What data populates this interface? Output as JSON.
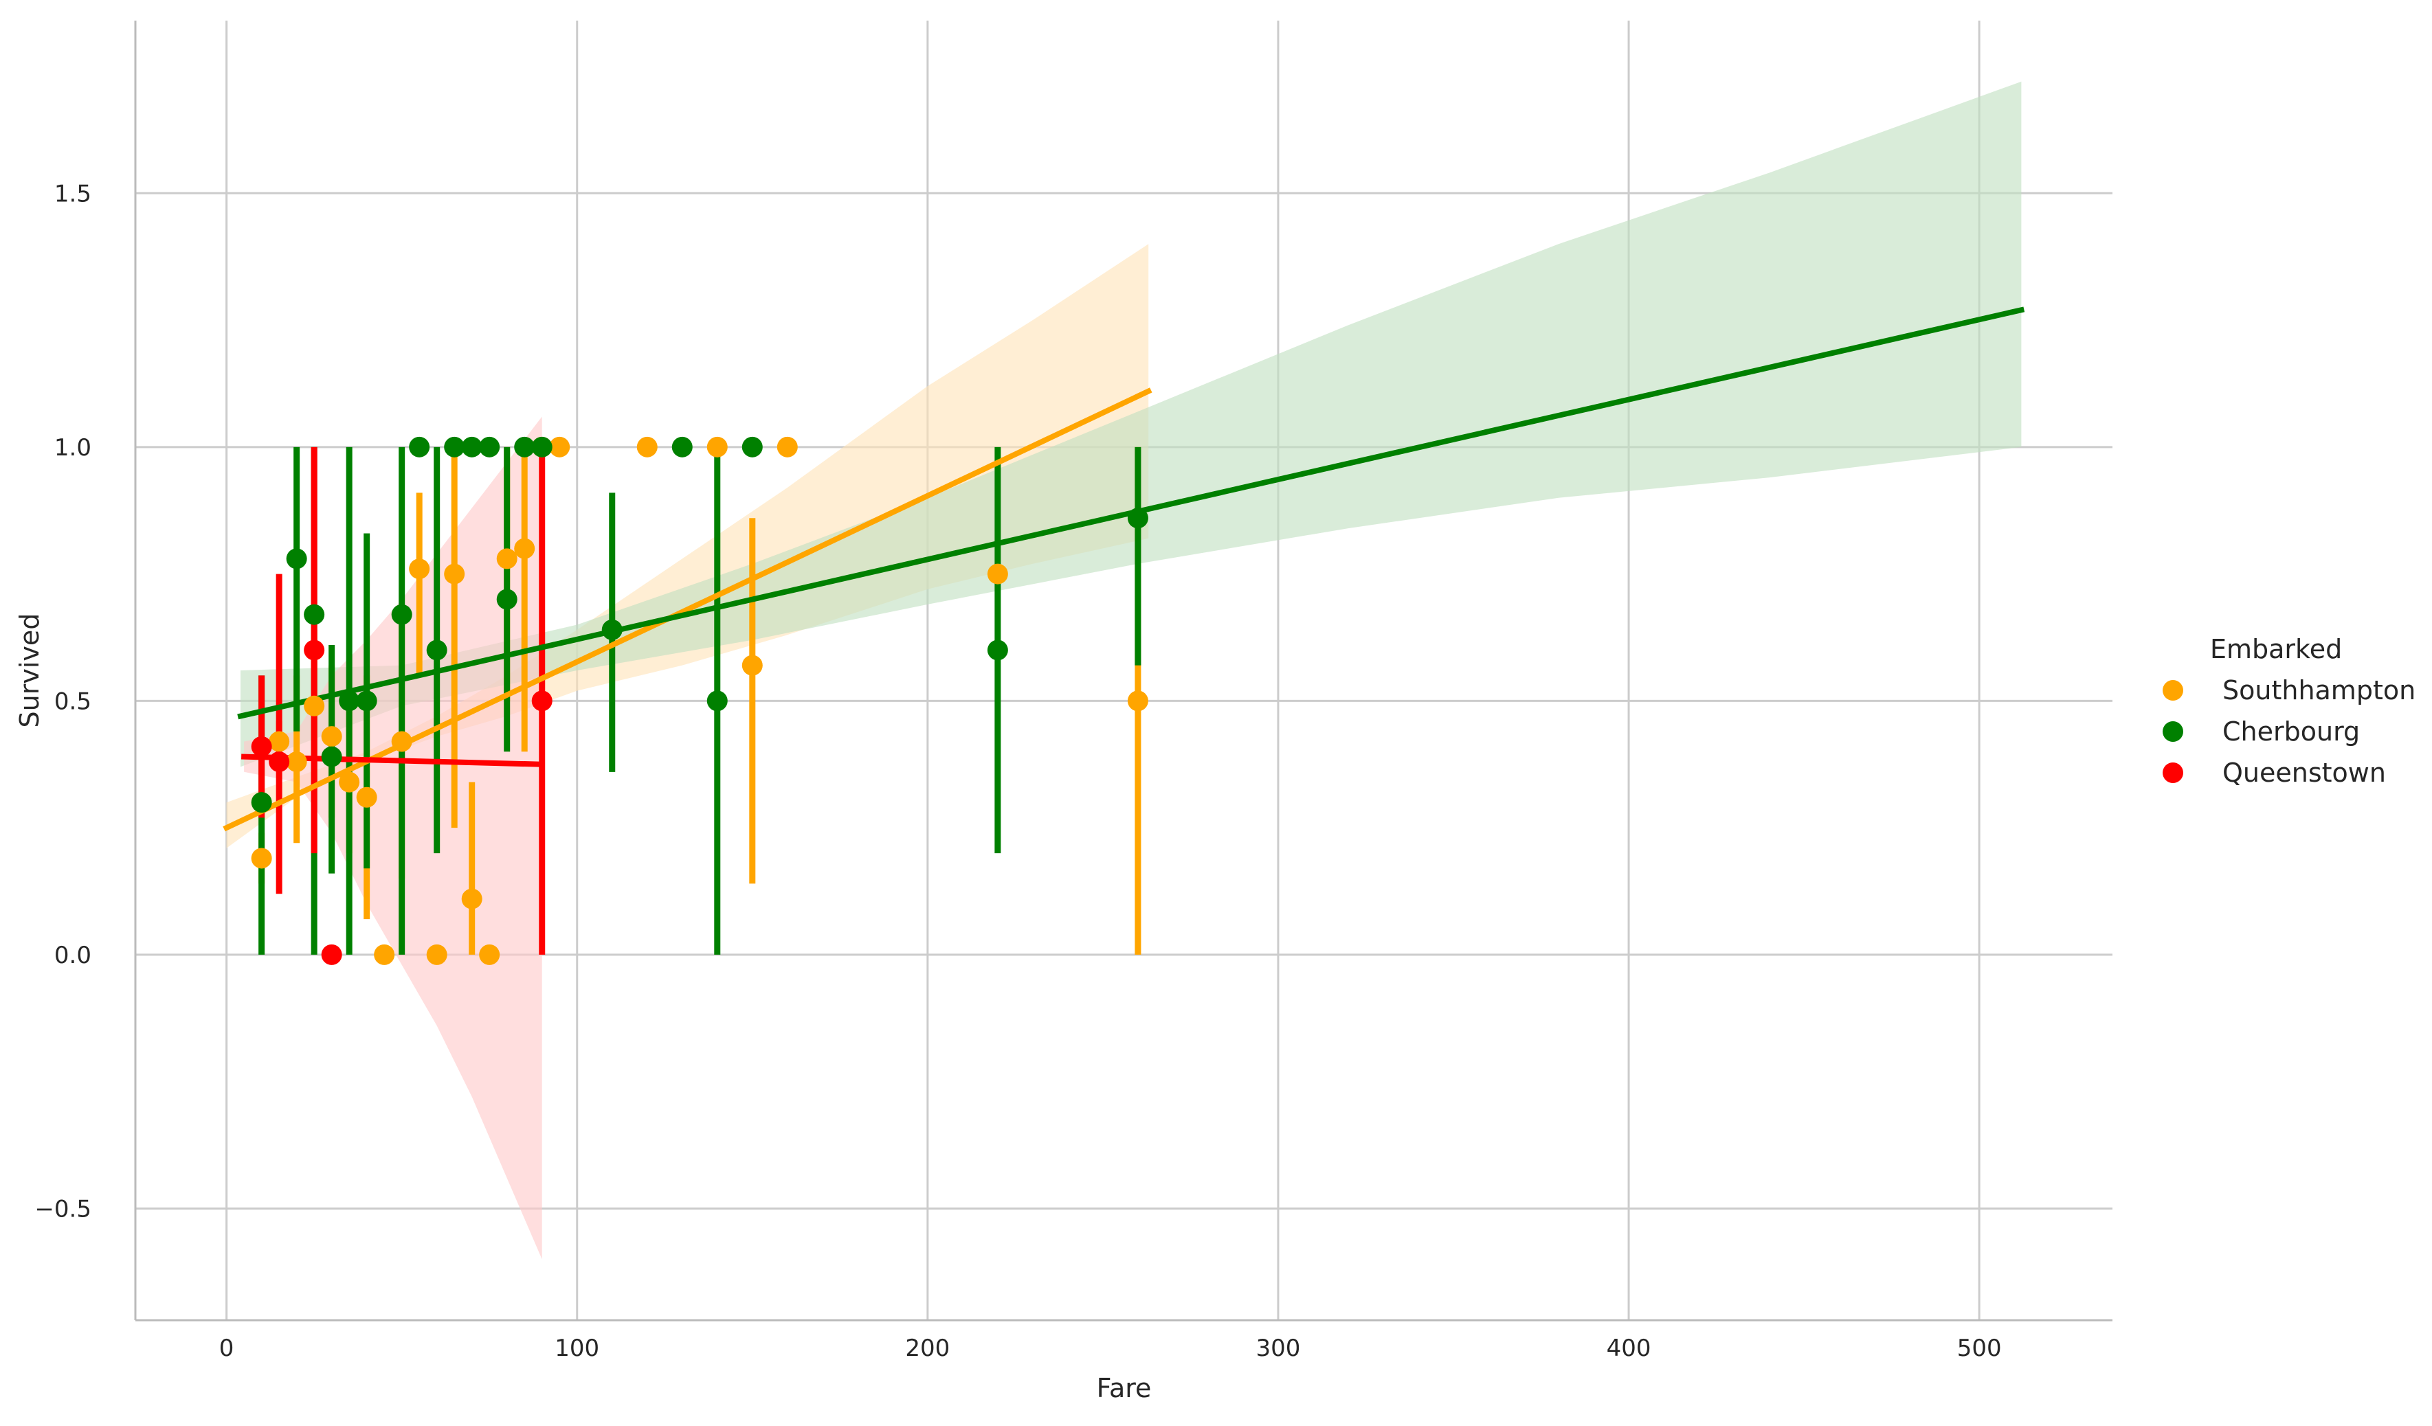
{
  "chart_data": {
    "type": "scatter",
    "title": "",
    "xlabel": "Fare",
    "ylabel": "Survived",
    "xlim": [
      -26,
      538
    ],
    "ylim": [
      -0.72,
      1.84
    ],
    "xticks": [
      0,
      100,
      200,
      300,
      400,
      500
    ],
    "yticks": [
      -0.5,
      0.0,
      0.5,
      1.0,
      1.5
    ],
    "xtick_labels": [
      "0",
      "100",
      "200",
      "300",
      "400",
      "500"
    ],
    "ytick_labels": [
      "−0.5",
      "0.0",
      "0.5",
      "1.0",
      "1.5"
    ],
    "grid": true,
    "legend": {
      "title": "Embarked",
      "position": "right"
    },
    "series": [
      {
        "name": "Southhampton",
        "color": "#FFA500",
        "band_color": "#FFE3B8",
        "points": [
          {
            "x": 10,
            "y": 0.19,
            "lo": 0.14,
            "hi": 0.24
          },
          {
            "x": 15,
            "y": 0.42,
            "lo": 0.38,
            "hi": 0.46
          },
          {
            "x": 20,
            "y": 0.38,
            "lo": 0.22,
            "hi": 0.55
          },
          {
            "x": 25,
            "y": 0.49,
            "lo": 0.33,
            "hi": 0.64
          },
          {
            "x": 30,
            "y": 0.43,
            "lo": 0.27,
            "hi": 0.57
          },
          {
            "x": 35,
            "y": 0.34,
            "lo": 0.2,
            "hi": 0.5
          },
          {
            "x": 40,
            "y": 0.31,
            "lo": 0.07,
            "hi": 0.55
          },
          {
            "x": 45,
            "y": 0.0,
            "lo": 0.0,
            "hi": 0.0
          },
          {
            "x": 50,
            "y": 0.42,
            "lo": 0.15,
            "hi": 0.65
          },
          {
            "x": 55,
            "y": 0.76,
            "lo": 0.55,
            "hi": 0.91
          },
          {
            "x": 60,
            "y": 0.0,
            "lo": 0.0,
            "hi": 0.0
          },
          {
            "x": 65,
            "y": 0.75,
            "lo": 0.25,
            "hi": 1.0
          },
          {
            "x": 70,
            "y": 0.11,
            "lo": 0.0,
            "hi": 0.34
          },
          {
            "x": 75,
            "y": 0.0,
            "lo": 0.0,
            "hi": 0.0
          },
          {
            "x": 80,
            "y": 0.78,
            "lo": 0.5,
            "hi": 1.0
          },
          {
            "x": 85,
            "y": 0.8,
            "lo": 0.4,
            "hi": 1.0
          },
          {
            "x": 90,
            "y": 1.0,
            "lo": 1.0,
            "hi": 1.0
          },
          {
            "x": 95,
            "y": 1.0,
            "lo": 1.0,
            "hi": 1.0
          },
          {
            "x": 120,
            "y": 1.0,
            "lo": 1.0,
            "hi": 1.0
          },
          {
            "x": 140,
            "y": 1.0,
            "lo": 1.0,
            "hi": 1.0
          },
          {
            "x": 150,
            "y": 0.57,
            "lo": 0.14,
            "hi": 0.86
          },
          {
            "x": 160,
            "y": 1.0,
            "lo": 1.0,
            "hi": 1.0
          },
          {
            "x": 220,
            "y": 0.75,
            "lo": 0.75,
            "hi": 0.75
          },
          {
            "x": 260,
            "y": 0.5,
            "lo": 0.0,
            "hi": 1.0
          }
        ],
        "regression": {
          "x": [
            0,
            263
          ],
          "y": [
            0.25,
            1.11
          ]
        },
        "ci_band": {
          "x": [
            0,
            20,
            40,
            60,
            80,
            100,
            130,
            160,
            200,
            230,
            263
          ],
          "lo": [
            0.21,
            0.31,
            0.38,
            0.43,
            0.47,
            0.52,
            0.57,
            0.63,
            0.72,
            0.77,
            0.82
          ],
          "hi": [
            0.3,
            0.35,
            0.4,
            0.47,
            0.55,
            0.64,
            0.78,
            0.92,
            1.12,
            1.25,
            1.4
          ]
        }
      },
      {
        "name": "Cherbourg",
        "color": "#008000",
        "band_color": "#BFE0BF",
        "points": [
          {
            "x": 10,
            "y": 0.3,
            "lo": 0.0,
            "hi": 0.55
          },
          {
            "x": 20,
            "y": 0.78,
            "lo": 0.44,
            "hi": 1.0
          },
          {
            "x": 25,
            "y": 0.67,
            "lo": 0.0,
            "hi": 1.0
          },
          {
            "x": 30,
            "y": 0.39,
            "lo": 0.16,
            "hi": 0.61
          },
          {
            "x": 35,
            "y": 0.5,
            "lo": 0.0,
            "hi": 1.0
          },
          {
            "x": 40,
            "y": 0.5,
            "lo": 0.17,
            "hi": 0.83
          },
          {
            "x": 50,
            "y": 0.67,
            "lo": 0.0,
            "hi": 1.0
          },
          {
            "x": 55,
            "y": 1.0,
            "lo": 1.0,
            "hi": 1.0
          },
          {
            "x": 60,
            "y": 0.6,
            "lo": 0.2,
            "hi": 1.0
          },
          {
            "x": 65,
            "y": 1.0,
            "lo": 1.0,
            "hi": 1.0
          },
          {
            "x": 70,
            "y": 1.0,
            "lo": 1.0,
            "hi": 1.0
          },
          {
            "x": 75,
            "y": 1.0,
            "lo": 1.0,
            "hi": 1.0
          },
          {
            "x": 80,
            "y": 0.7,
            "lo": 0.4,
            "hi": 1.0
          },
          {
            "x": 85,
            "y": 1.0,
            "lo": 1.0,
            "hi": 1.0
          },
          {
            "x": 90,
            "y": 1.0,
            "lo": 1.0,
            "hi": 1.0
          },
          {
            "x": 110,
            "y": 0.64,
            "lo": 0.36,
            "hi": 0.91
          },
          {
            "x": 130,
            "y": 1.0,
            "lo": 1.0,
            "hi": 1.0
          },
          {
            "x": 140,
            "y": 0.5,
            "lo": 0.0,
            "hi": 1.0
          },
          {
            "x": 150,
            "y": 1.0,
            "lo": 1.0,
            "hi": 1.0
          },
          {
            "x": 220,
            "y": 0.6,
            "lo": 0.2,
            "hi": 1.0
          },
          {
            "x": 260,
            "y": 0.86,
            "lo": 0.57,
            "hi": 1.0
          }
        ],
        "regression": {
          "x": [
            4,
            512
          ],
          "y": [
            0.47,
            1.27
          ]
        },
        "ci_band": {
          "x": [
            4,
            50,
            100,
            150,
            200,
            260,
            320,
            380,
            440,
            512
          ],
          "lo": [
            0.37,
            0.49,
            0.56,
            0.62,
            0.69,
            0.77,
            0.84,
            0.9,
            0.94,
            1.0
          ],
          "hi": [
            0.56,
            0.57,
            0.65,
            0.77,
            0.9,
            1.07,
            1.24,
            1.4,
            1.54,
            1.72
          ]
        }
      },
      {
        "name": "Queenstown",
        "color": "#FF0000",
        "band_color": "#FFC8C8",
        "points": [
          {
            "x": 10,
            "y": 0.41,
            "lo": 0.27,
            "hi": 0.55
          },
          {
            "x": 15,
            "y": 0.38,
            "lo": 0.12,
            "hi": 0.75
          },
          {
            "x": 25,
            "y": 0.6,
            "lo": 0.2,
            "hi": 1.0
          },
          {
            "x": 30,
            "y": 0.0,
            "lo": 0.0,
            "hi": 0.0
          },
          {
            "x": 90,
            "y": 0.5,
            "lo": 0.0,
            "hi": 1.0
          }
        ],
        "regression": {
          "x": [
            5,
            90
          ],
          "y": [
            0.39,
            0.375
          ]
        },
        "ci_band": {
          "x": [
            5,
            20,
            30,
            40,
            50,
            60,
            70,
            80,
            90
          ],
          "lo": [
            0.36,
            0.34,
            0.24,
            0.1,
            -0.02,
            -0.14,
            -0.28,
            -0.44,
            -0.6
          ],
          "hi": [
            0.42,
            0.44,
            0.55,
            0.62,
            0.7,
            0.79,
            0.88,
            0.97,
            1.06
          ]
        }
      }
    ]
  }
}
